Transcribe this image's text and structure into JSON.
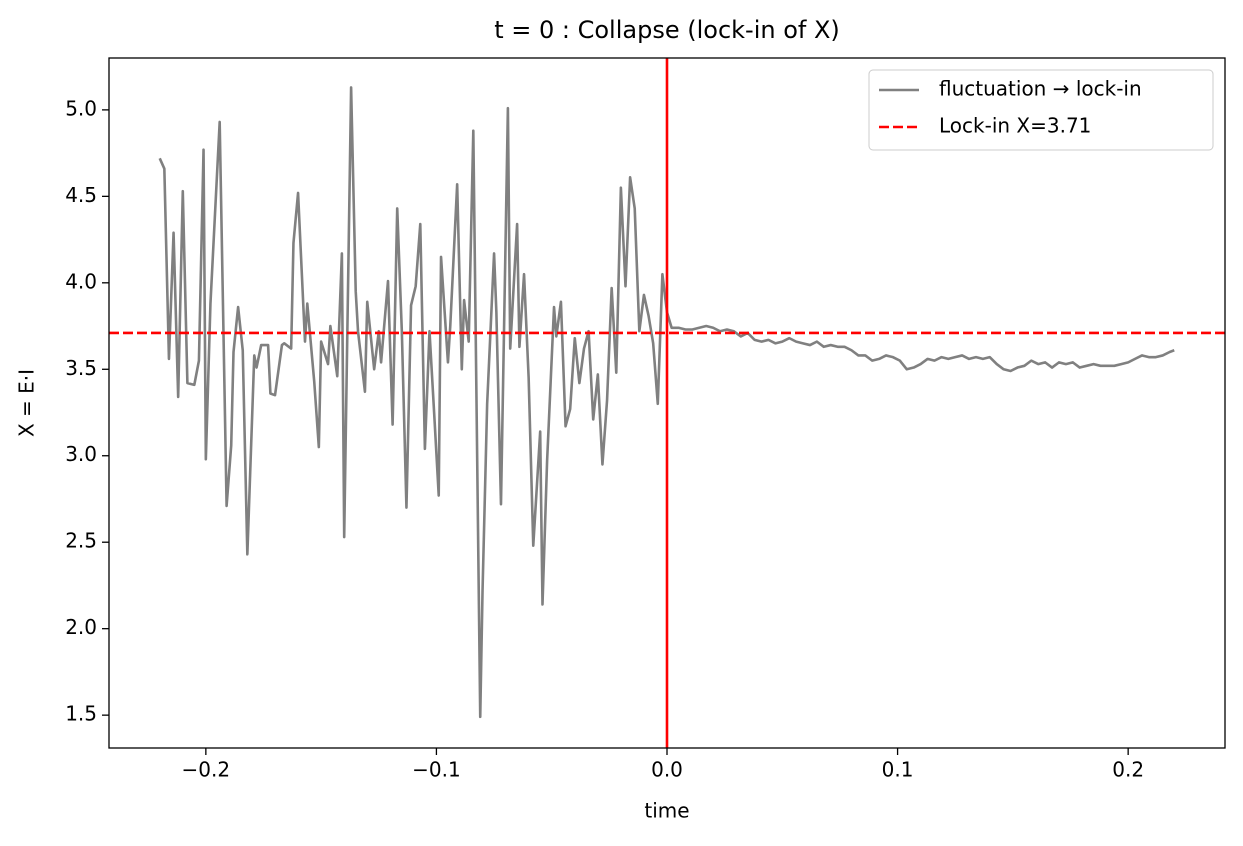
{
  "chart_data": {
    "type": "line",
    "title": "t = 0 : Collapse (lock-in of X)",
    "x_label": "time",
    "y_label": "X = E·I",
    "xlim": [
      -0.242,
      0.242
    ],
    "ylim": [
      1.31,
      5.3
    ],
    "xticks": [
      {
        "value": -0.2,
        "label": "−0.2"
      },
      {
        "value": -0.1,
        "label": "−0.1"
      },
      {
        "value": 0,
        "label": "0.0"
      },
      0.1,
      0.2
    ],
    "yticks": [
      1.5,
      {
        "value": 2,
        "label": "2.0"
      },
      2.5,
      {
        "value": 3,
        "label": "3.0"
      },
      3.5,
      {
        "value": 4,
        "label": "4.0"
      },
      4.5,
      {
        "value": 5,
        "label": "5.0"
      }
    ],
    "legend": "upper right",
    "series": [
      {
        "name": "fluctuation → lock-in",
        "color": "#808080",
        "x": [
          -0.22,
          -0.218,
          -0.216,
          -0.214,
          -0.212,
          -0.21,
          -0.208,
          -0.205,
          -0.203,
          -0.201,
          -0.2,
          -0.198,
          -0.194,
          -0.191,
          -0.189,
          -0.188,
          -0.186,
          -0.184,
          -0.182,
          -0.179,
          -0.178,
          -0.176,
          -0.173,
          -0.172,
          -0.17,
          -0.167,
          -0.166,
          -0.163,
          -0.162,
          -0.16,
          -0.157,
          -0.156,
          -0.153,
          -0.151,
          -0.15,
          -0.147,
          -0.146,
          -0.143,
          -0.141,
          -0.14,
          -0.137,
          -0.135,
          -0.134,
          -0.131,
          -0.13,
          -0.127,
          -0.125,
          -0.124,
          -0.121,
          -0.119,
          -0.117,
          -0.115,
          -0.113,
          -0.111,
          -0.109,
          -0.107,
          -0.105,
          -0.103,
          -0.101,
          -0.099,
          -0.098,
          -0.095,
          -0.094,
          -0.091,
          -0.089,
          -0.088,
          -0.086,
          -0.084,
          -0.081,
          -0.08,
          -0.078,
          -0.075,
          -0.074,
          -0.072,
          -0.069,
          -0.068,
          -0.065,
          -0.064,
          -0.062,
          -0.06,
          -0.058,
          -0.055,
          -0.054,
          -0.052,
          -0.049,
          -0.048,
          -0.046,
          -0.044,
          -0.042,
          -0.04,
          -0.038,
          -0.036,
          -0.034,
          -0.032,
          -0.03,
          -0.028,
          -0.026,
          -0.024,
          -0.022,
          -0.02,
          -0.018,
          -0.016,
          -0.014,
          -0.012,
          -0.01,
          -0.008,
          -0.006,
          -0.004,
          -0.002,
          0.0,
          0.002,
          0.005,
          0.008,
          0.011,
          0.014,
          0.017,
          0.02,
          0.023,
          0.026,
          0.029,
          0.032,
          0.035,
          0.038,
          0.041,
          0.044,
          0.047,
          0.05,
          0.053,
          0.056,
          0.059,
          0.062,
          0.065,
          0.068,
          0.071,
          0.074,
          0.077,
          0.08,
          0.083,
          0.086,
          0.089,
          0.092,
          0.095,
          0.098,
          0.101,
          0.104,
          0.107,
          0.11,
          0.113,
          0.116,
          0.119,
          0.122,
          0.125,
          0.128,
          0.131,
          0.134,
          0.137,
          0.14,
          0.143,
          0.146,
          0.149,
          0.152,
          0.155,
          0.158,
          0.161,
          0.164,
          0.167,
          0.17,
          0.173,
          0.176,
          0.179,
          0.182,
          0.185,
          0.188,
          0.191,
          0.194,
          0.197,
          0.2,
          0.203,
          0.206,
          0.209,
          0.212,
          0.215,
          0.218,
          0.22
        ],
        "values": [
          4.72,
          4.66,
          3.56,
          4.29,
          3.34,
          4.53,
          3.42,
          3.41,
          3.55,
          4.77,
          2.98,
          3.88,
          4.93,
          2.71,
          3.06,
          3.6,
          3.86,
          3.61,
          2.43,
          3.58,
          3.51,
          3.64,
          3.64,
          3.36,
          3.35,
          3.64,
          3.65,
          3.62,
          4.23,
          4.52,
          3.66,
          3.88,
          3.43,
          3.05,
          3.66,
          3.53,
          3.75,
          3.46,
          4.17,
          2.53,
          5.13,
          3.95,
          3.72,
          3.37,
          3.89,
          3.5,
          3.72,
          3.54,
          4.01,
          3.18,
          4.43,
          3.72,
          2.7,
          3.87,
          3.98,
          4.34,
          3.04,
          3.72,
          3.25,
          2.77,
          4.15,
          3.54,
          3.75,
          4.57,
          3.5,
          3.9,
          3.66,
          4.88,
          1.49,
          2.22,
          3.3,
          4.17,
          3.83,
          2.72,
          5.01,
          3.62,
          4.34,
          3.63,
          4.05,
          3.45,
          2.48,
          3.14,
          2.14,
          2.97,
          3.86,
          3.69,
          3.89,
          3.17,
          3.27,
          3.68,
          3.42,
          3.62,
          3.72,
          3.21,
          3.47,
          2.95,
          3.32,
          3.97,
          3.48,
          4.55,
          3.98,
          4.61,
          4.43,
          3.72,
          3.93,
          3.81,
          3.65,
          3.3,
          4.05,
          3.83,
          3.74,
          3.74,
          3.73,
          3.73,
          3.74,
          3.75,
          3.74,
          3.72,
          3.73,
          3.72,
          3.69,
          3.71,
          3.67,
          3.66,
          3.67,
          3.65,
          3.66,
          3.68,
          3.66,
          3.65,
          3.64,
          3.66,
          3.63,
          3.64,
          3.63,
          3.63,
          3.61,
          3.58,
          3.58,
          3.55,
          3.56,
          3.58,
          3.57,
          3.55,
          3.5,
          3.51,
          3.53,
          3.56,
          3.55,
          3.57,
          3.56,
          3.57,
          3.58,
          3.56,
          3.57,
          3.56,
          3.57,
          3.53,
          3.5,
          3.49,
          3.51,
          3.52,
          3.55,
          3.53,
          3.54,
          3.51,
          3.54,
          3.53,
          3.54,
          3.51,
          3.52,
          3.53,
          3.52,
          3.52,
          3.52,
          3.53,
          3.54,
          3.56,
          3.58,
          3.57,
          3.57,
          3.58,
          3.6,
          3.61
        ]
      }
    ],
    "hline": {
      "name": "Lock-in X=3.71",
      "value": 3.71,
      "color": "#ff0000",
      "dashed": true
    },
    "vline": {
      "value": 0,
      "color": "#ff0000"
    }
  }
}
